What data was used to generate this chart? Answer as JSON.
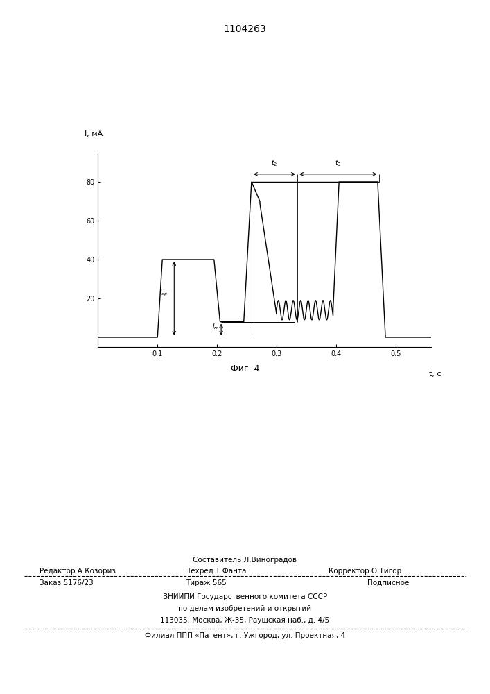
{
  "title": "1104263",
  "fig_label": "Фиг. 4",
  "xlabel": "t, c",
  "ylabel": "I, мА",
  "ytick_labels": [
    "20",
    "40",
    "60",
    "80"
  ],
  "ytick_vals": [
    20,
    40,
    60,
    80
  ],
  "xtick_labels": [
    "0.1",
    "0.2",
    "0.3",
    "0.4",
    "0.5"
  ],
  "xtick_vals": [
    0.1,
    0.2,
    0.3,
    0.4,
    0.5
  ],
  "xlim": [
    0.0,
    0.56
  ],
  "ylim": [
    -5,
    95
  ],
  "background_color": "#ffffff",
  "line_color": "#000000",
  "footer_sestavitel": "Составитель Л.Виноградов",
  "footer_redaktor": "Редактор А.Козориз",
  "footer_tehred": "Техред Т.Фанта",
  "footer_korrektor": "Корректор О.Тигор",
  "footer_zakaz": "Заказ 5176/23",
  "footer_tirazh": "Тираж 565",
  "footer_podpisnoe": "Подписное",
  "footer_vniip1": "ВНИИПИ Государственного комитета СССР",
  "footer_vniip2": "по делам изобретений и открытий",
  "footer_addr": "113035, Москва, Ж-35, Раушская наб., д. 4/5",
  "footer_filial": "Филиал ППП «Патент», г. Ужгород, ул. Проектная, 4"
}
